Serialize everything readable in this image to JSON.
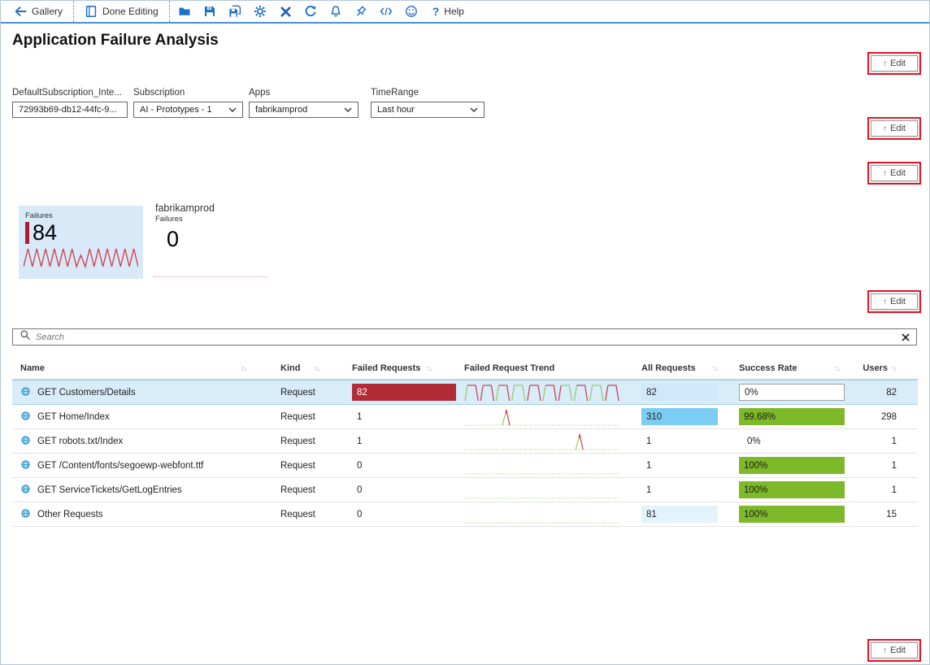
{
  "toolbar": {
    "gallery_label": "Gallery",
    "done_editing_label": "Done Editing",
    "help_label": "Help",
    "help_glyph": "?"
  },
  "page_title": "Application Failure Analysis",
  "edit_button": {
    "label": "Edit",
    "arrow": "↑"
  },
  "parameters": [
    {
      "label": "DefaultSubscription_Inte...",
      "value": "72993b69-db12-44fc-9...",
      "type": "text"
    },
    {
      "label": "Subscription",
      "value": "AI - Prototypes - 1",
      "type": "dropdown"
    },
    {
      "label": "Apps",
      "value": "fabrikamprod",
      "type": "dropdown"
    },
    {
      "label": "TimeRange",
      "value": "Last hour",
      "type": "dropdown"
    }
  ],
  "tiles": {
    "failures_tile": {
      "label": "Failures",
      "value": "84",
      "trend": {
        "type": "zigzag",
        "peaks": 13
      }
    },
    "app_tile": {
      "title": "fabrikamprod",
      "label": "Failures",
      "value": "0"
    }
  },
  "search": {
    "placeholder": "Search"
  },
  "table": {
    "sort_glyph": "↑↓",
    "columns": [
      "Name",
      "Kind",
      "Failed Requests",
      "Failed Request Trend",
      "All Requests",
      "Success Rate",
      "Users"
    ],
    "rows": [
      {
        "name": "GET Customers/Details",
        "kind": "Request",
        "failed_requests": "82",
        "all_requests": "82",
        "success_rate": "0%",
        "users": "82",
        "trend": {
          "type": "pulses",
          "count": 10,
          "pattern": [
            "gr",
            "rr",
            "gr",
            "gg",
            "rr",
            "gr",
            "rg",
            "gr",
            "gg",
            "rr"
          ]
        }
      },
      {
        "name": "GET Home/Index",
        "kind": "Request",
        "failed_requests": "1",
        "all_requests": "310",
        "success_rate": "99.68%",
        "users": "298",
        "trend": {
          "type": "spike",
          "pos": 0.27
        }
      },
      {
        "name": "GET robots.txt/Index",
        "kind": "Request",
        "failed_requests": "1",
        "all_requests": "1",
        "success_rate": "0%",
        "users": "1",
        "trend": {
          "type": "spike",
          "pos": 0.74
        }
      },
      {
        "name": "GET /Content/fonts/segoewp-webfont.ttf",
        "kind": "Request",
        "failed_requests": "0",
        "all_requests": "1",
        "success_rate": "100%",
        "users": "1",
        "trend": {
          "type": "flat"
        }
      },
      {
        "name": "GET ServiceTickets/GetLogEntries",
        "kind": "Request",
        "failed_requests": "0",
        "all_requests": "1",
        "success_rate": "100%",
        "users": "1",
        "trend": {
          "type": "flat"
        }
      },
      {
        "name": "Other Requests",
        "kind": "Request",
        "failed_requests": "0",
        "all_requests": "81",
        "success_rate": "100%",
        "users": "15",
        "trend": {
          "type": "flat"
        }
      }
    ]
  },
  "colors": {
    "accent_blue": "#1f6fc4",
    "toolbar_underline": "#4a90d2",
    "bar_red": "#b22c38",
    "bar_blue": "#7bcdf3",
    "bar_green": "#7db928",
    "cell_light_blue": "#cfe9fa",
    "row_selected": "#d8ecfa",
    "tile_bg": "#d8e9f8",
    "edit_outline_red": "#e81123",
    "spark_green": "#9ccb6e",
    "spark_red": "#cf4653"
  }
}
